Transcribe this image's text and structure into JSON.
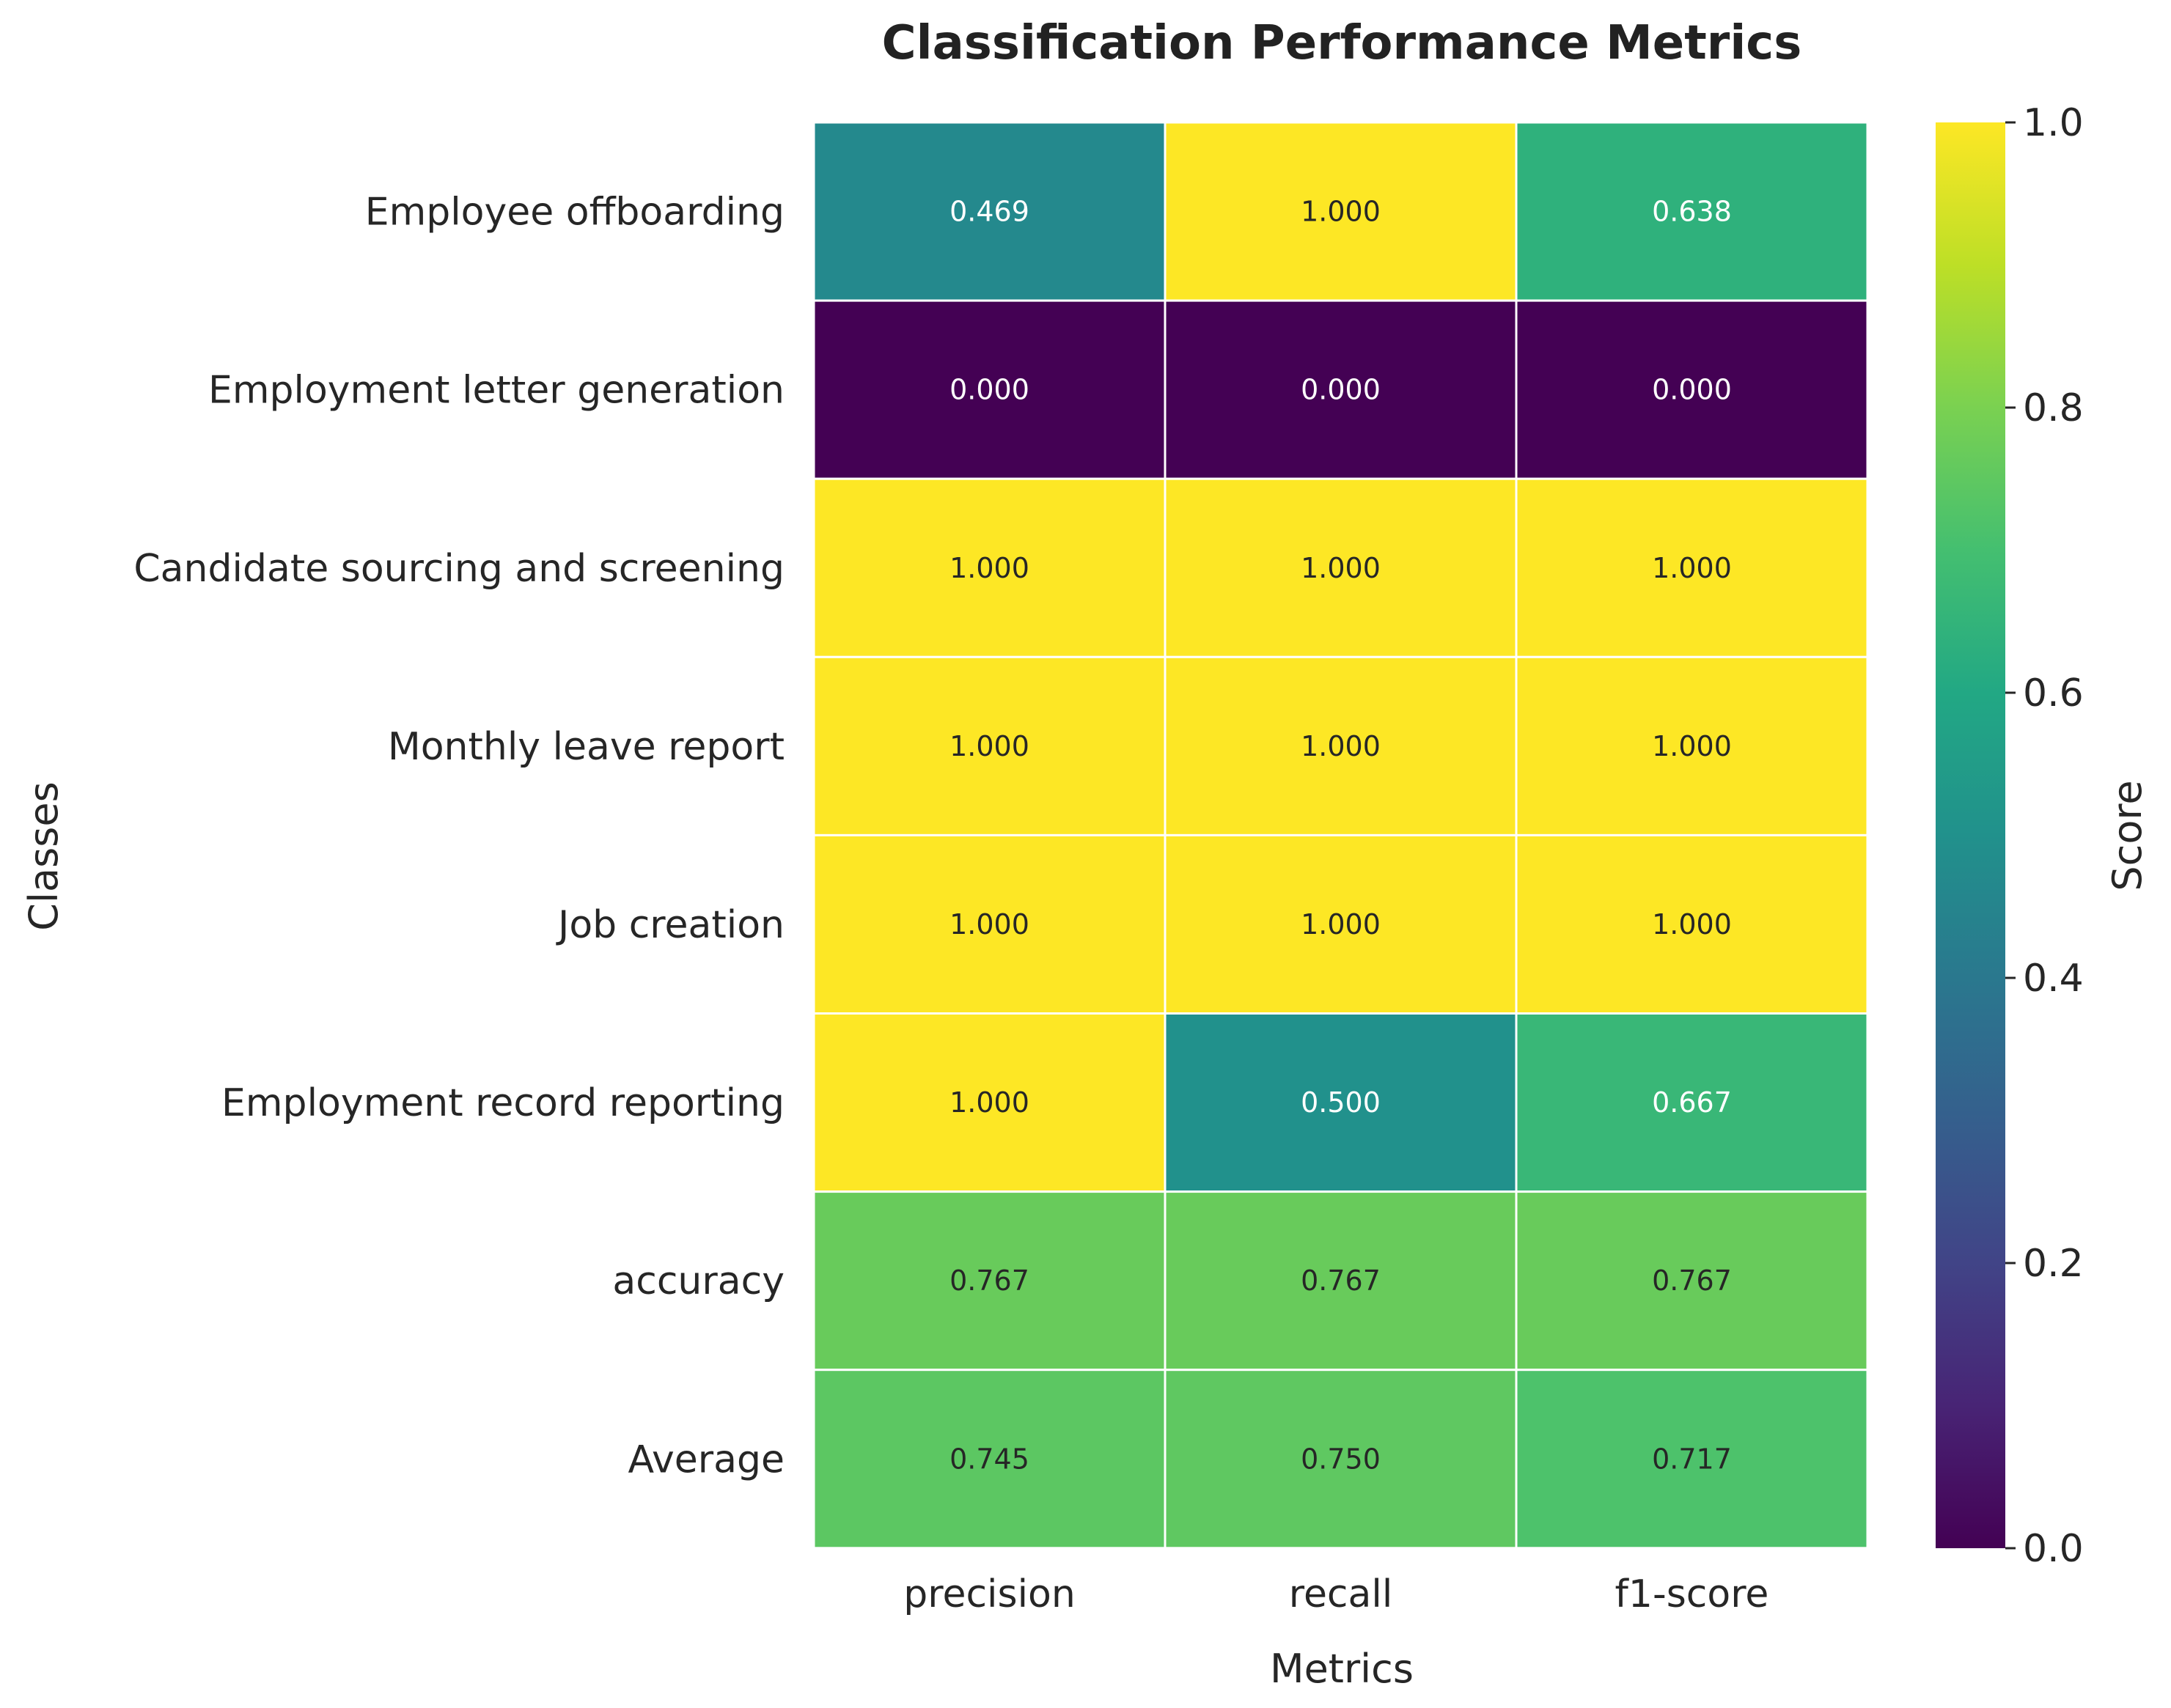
{
  "chart_data": {
    "type": "heatmap",
    "title": "Classification Performance Metrics",
    "xlabel": "Metrics",
    "ylabel": "Classes",
    "columns": [
      "precision",
      "recall",
      "f1-score"
    ],
    "rows": [
      "Employee offboarding",
      "Employment letter generation",
      "Candidate sourcing and screening",
      "Monthly leave report",
      "Job creation",
      "Employment record reporting",
      "accuracy",
      "Average"
    ],
    "values": [
      [
        0.469,
        1.0,
        0.638
      ],
      [
        0.0,
        0.0,
        0.0
      ],
      [
        1.0,
        1.0,
        1.0
      ],
      [
        1.0,
        1.0,
        1.0
      ],
      [
        1.0,
        1.0,
        1.0
      ],
      [
        1.0,
        0.5,
        0.667
      ],
      [
        0.767,
        0.767,
        0.767
      ],
      [
        0.745,
        0.75,
        0.717
      ]
    ],
    "value_format": "0.000",
    "colormap": "viridis",
    "vmin": 0.0,
    "vmax": 1.0,
    "colorbar": {
      "label": "Score",
      "ticks": [
        "0.0",
        "0.2",
        "0.4",
        "0.6",
        "0.8",
        "1.0"
      ]
    },
    "grid": false,
    "cell_border_color": "#ffffff"
  }
}
